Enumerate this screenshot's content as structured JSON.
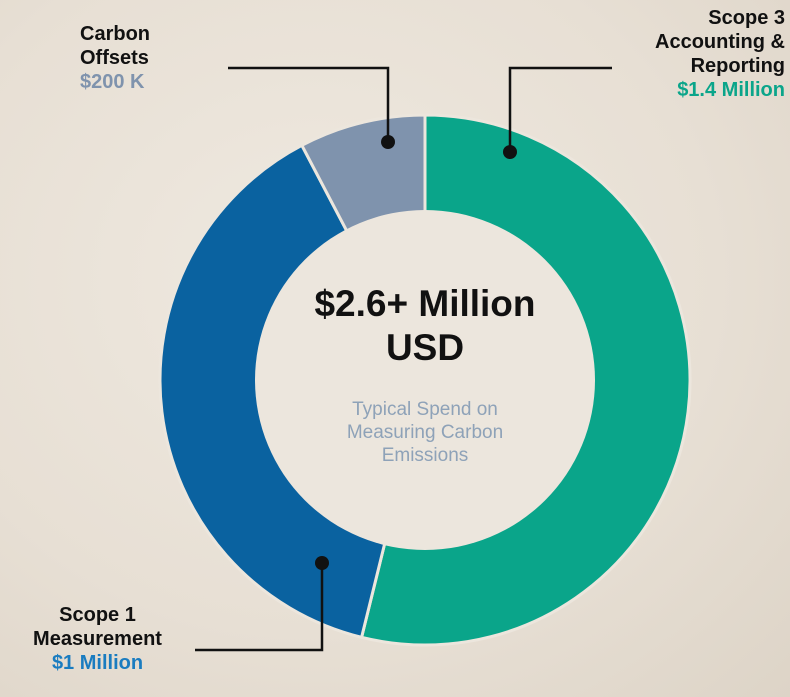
{
  "chart_data": {
    "type": "donut",
    "categories": [
      "Scope 3 Accounting & Reporting",
      "Scope 1 Measurement",
      "Carbon Offsets"
    ],
    "values": [
      1.4,
      1,
      0.2
    ],
    "value_labels": [
      "$1.4 Million",
      "$1 Million",
      "$200 K"
    ],
    "colors": [
      "#0aa58a",
      "#0a62a0",
      "#7f93ad"
    ],
    "center_title": "$2.6+ Million USD",
    "center_subtitle": "Typical Spend on Measuring Carbon Emissions"
  }
}
